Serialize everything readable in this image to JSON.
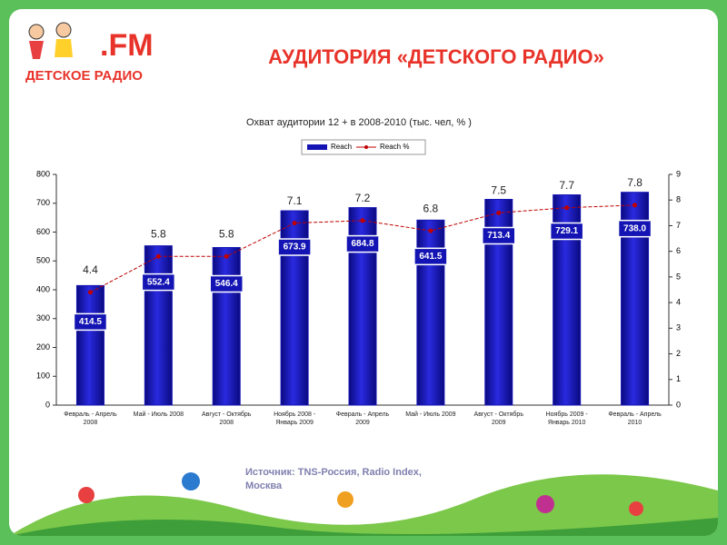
{
  "header": {
    "title": "АУДИТОРИЯ «ДЕТСКОГО РАДИО»",
    "logo_name": "ДЕТСКОЕ РАДИО",
    "logo_fm": ".FM"
  },
  "chart_data": {
    "type": "bar_line",
    "title": "Охват аудитории 12 +  в  2008-2010 (тыс. чел, % )",
    "categories": [
      "Февраль - Апрель\n2008",
      "Май - Июль 2008",
      "Август - Октябрь\n2008",
      "Ноябрь 2008 -\nЯнварь 2009",
      "Февраль - Апрель\n2009",
      "Май - Июль 2009",
      "Август - Октябрь\n2009",
      "Ноябрь 2009 -\nЯнварь 2010",
      "Февраль - Апрель\n2010"
    ],
    "series": [
      {
        "name": "Reach",
        "color": "#1414b4",
        "values": [
          414.5,
          552.4,
          546.4,
          673.9,
          684.8,
          641.5,
          713.4,
          729.1,
          738
        ],
        "value_labels": [
          "414.5",
          "552.4",
          "546.4",
          "673.9",
          "684.8",
          "641.5",
          "713.4",
          "729.1",
          "738.0"
        ]
      },
      {
        "name": "Reach %",
        "color": "#c00000",
        "axis": "y2",
        "values": [
          4.4,
          5.8,
          5.8,
          7.1,
          7.2,
          6.8,
          7.5,
          7.7,
          7.8
        ]
      }
    ],
    "ylim": [
      0,
      800
    ],
    "yticks": [
      0,
      100,
      200,
      300,
      400,
      500,
      600,
      700,
      800
    ],
    "y2lim": [
      0,
      9
    ],
    "y2ticks": [
      0,
      1,
      2,
      3,
      4,
      5,
      6,
      7,
      8,
      9
    ],
    "legend": "top"
  },
  "source": "Источник: TNS-Россия, Radio Index,\nМосква"
}
